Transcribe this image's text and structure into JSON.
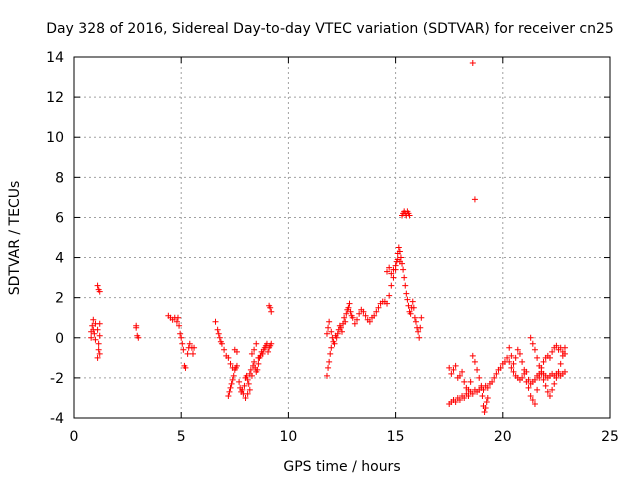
{
  "chart_data": {
    "type": "scatter",
    "title": "Day 328 of 2016, Sidereal Day-to-day VTEC variation (SDTVAR) for receiver cn25",
    "xlabel": "GPS time / hours",
    "ylabel": "SDTVAR / TECUs",
    "xlim": [
      0,
      25
    ],
    "ylim": [
      -4,
      14
    ],
    "xticks": [
      0,
      5,
      10,
      15,
      20,
      25
    ],
    "yticks": [
      -4,
      -2,
      0,
      2,
      4,
      6,
      8,
      10,
      12,
      14
    ],
    "xtick_labels": [
      "0",
      "5",
      "10",
      "15",
      "20",
      "25"
    ],
    "ytick_labels": [
      "-4",
      "-2",
      "0",
      "2",
      "4",
      "6",
      "8",
      "10",
      "12",
      "14"
    ],
    "grid": true,
    "marker": "+",
    "marker_color": "#ff0000",
    "series": [
      {
        "name": "SDTVAR",
        "x": [
          0.8,
          0.85,
          0.9,
          0.95,
          1.0,
          0.8,
          0.9,
          1.0,
          1.1,
          1.15,
          1.2,
          1.1,
          1.15,
          1.2,
          1.1,
          1.15,
          1.2,
          1.2,
          2.9,
          2.95,
          3.0,
          2.9,
          4.4,
          4.5,
          4.6,
          4.7,
          4.8,
          4.85,
          4.9,
          4.95,
          5.0,
          5.05,
          5.1,
          5.15,
          5.2,
          5.3,
          5.35,
          5.4,
          5.5,
          5.55,
          5.6,
          6.6,
          6.7,
          6.75,
          6.8,
          6.85,
          6.9,
          7.0,
          7.1,
          7.2,
          7.3,
          7.4,
          7.5,
          7.6,
          7.2,
          7.25,
          7.3,
          7.35,
          7.4,
          7.45,
          7.5,
          7.55,
          7.6,
          7.7,
          7.75,
          7.8,
          7.85,
          7.9,
          7.95,
          8.0,
          8.05,
          8.1,
          8.15,
          8.2,
          8.25,
          8.3,
          8.35,
          8.4,
          8.45,
          8.5,
          8.55,
          8.6,
          8.65,
          8.7,
          8.75,
          8.8,
          8.85,
          8.9,
          8.95,
          9.0,
          9.05,
          9.1,
          9.15,
          9.2,
          8.0,
          8.1,
          8.2,
          8.3,
          8.4,
          8.5,
          8.6,
          9.1,
          9.15,
          9.2,
          11.8,
          11.85,
          11.9,
          11.95,
          12.0,
          11.8,
          11.85,
          11.9,
          12.0,
          12.05,
          12.1,
          12.15,
          12.2,
          12.25,
          12.3,
          12.35,
          12.4,
          12.45,
          12.5,
          12.55,
          12.6,
          12.65,
          12.7,
          12.75,
          12.8,
          12.85,
          12.9,
          12.95,
          13.0,
          13.1,
          13.2,
          13.3,
          13.4,
          13.5,
          13.6,
          13.7,
          13.8,
          13.9,
          14.0,
          14.1,
          14.2,
          14.3,
          14.4,
          14.5,
          14.6,
          14.7,
          14.8,
          14.9,
          15.0,
          15.05,
          15.1,
          15.15,
          15.2,
          15.25,
          15.3,
          15.35,
          15.4,
          15.45,
          15.5,
          15.55,
          15.6,
          15.65,
          15.7,
          15.75,
          15.8,
          15.85,
          15.9,
          15.95,
          16.0,
          16.05,
          16.1,
          16.15,
          16.2,
          15.3,
          15.35,
          15.4,
          15.45,
          15.5,
          15.55,
          15.6,
          15.65,
          14.6,
          14.7,
          14.8,
          14.9,
          15.0,
          15.1,
          15.2,
          18.6,
          18.7,
          17.5,
          17.6,
          17.7,
          17.8,
          17.9,
          18.0,
          18.1,
          18.2,
          18.3,
          18.4,
          18.5,
          18.6,
          18.7,
          18.8,
          18.9,
          19.0,
          19.1,
          19.2,
          19.3,
          19.4,
          19.5,
          19.6,
          19.7,
          19.8,
          19.9,
          20.0,
          20.1,
          20.2,
          20.3,
          20.4,
          20.5,
          20.6,
          20.7,
          20.8,
          20.9,
          21.0,
          21.1,
          21.2,
          21.3,
          21.4,
          21.5,
          21.6,
          21.7,
          21.8,
          21.9,
          22.0,
          22.1,
          22.2,
          22.3,
          22.4,
          22.5,
          22.6,
          22.7,
          22.8,
          22.9,
          17.5,
          17.6,
          17.7,
          17.8,
          17.9,
          18.0,
          18.1,
          18.2,
          18.3,
          18.4,
          18.5,
          18.6,
          18.7,
          18.8,
          18.9,
          19.0,
          19.05,
          19.1,
          19.15,
          19.2,
          19.25,
          19.3,
          20.3,
          20.4,
          20.5,
          20.6,
          20.7,
          20.8,
          20.9,
          21.0,
          21.1,
          21.2,
          21.3,
          21.4,
          21.5,
          21.6,
          21.7,
          21.8,
          21.9,
          22.0,
          22.1,
          22.2,
          22.3,
          22.4,
          22.5,
          22.6,
          22.7,
          22.8,
          22.9,
          21.3,
          21.4,
          21.5,
          21.6,
          21.7,
          21.8,
          21.9,
          22.0,
          22.1,
          22.2,
          22.3,
          22.4,
          22.5,
          22.6,
          22.7,
          22.8,
          22.9
        ],
        "y": [
          0.3,
          0.6,
          0.9,
          0.2,
          -0.1,
          0.0,
          0.4,
          0.7,
          0.4,
          -0.3,
          -0.8,
          2.6,
          2.4,
          2.3,
          -1.0,
          -0.6,
          0.7,
          0.1,
          0.5,
          0.1,
          0.0,
          0.6,
          1.1,
          1.0,
          0.9,
          1.0,
          0.8,
          1.0,
          0.6,
          0.2,
          0.0,
          -0.3,
          -0.6,
          -1.4,
          -1.5,
          -0.8,
          -0.5,
          -0.3,
          -0.5,
          -0.8,
          -0.5,
          0.8,
          0.4,
          0.2,
          0.0,
          -0.2,
          -0.3,
          -0.6,
          -0.9,
          -1.0,
          -1.3,
          -1.5,
          -0.6,
          -0.7,
          -2.9,
          -2.7,
          -2.5,
          -2.3,
          -2.1,
          -1.9,
          -1.6,
          -1.5,
          -1.4,
          -2.2,
          -2.5,
          -2.7,
          -2.6,
          -2.8,
          -2.4,
          -2.0,
          -1.9,
          -2.1,
          -2.3,
          -1.8,
          -1.6,
          -1.9,
          -1.4,
          -1.2,
          -1.5,
          -1.7,
          -1.6,
          -1.3,
          -1.0,
          -0.9,
          -0.7,
          -0.8,
          -0.6,
          -0.5,
          -0.4,
          -0.3,
          -0.7,
          1.6,
          1.5,
          1.3,
          -3.0,
          -2.8,
          -2.6,
          -0.8,
          -0.6,
          -0.3,
          -1.0,
          -0.5,
          -0.4,
          -0.3,
          -1.9,
          -1.5,
          -1.2,
          -0.8,
          -0.5,
          0.2,
          0.5,
          0.8,
          0.3,
          0.0,
          -0.2,
          -0.3,
          0.1,
          0.0,
          0.2,
          0.4,
          0.6,
          0.5,
          0.3,
          0.7,
          1.0,
          0.8,
          1.2,
          1.4,
          1.5,
          1.7,
          1.3,
          1.1,
          1.0,
          0.7,
          0.9,
          1.2,
          1.4,
          1.3,
          1.1,
          0.9,
          0.8,
          1.0,
          1.1,
          1.3,
          1.5,
          1.7,
          1.8,
          1.8,
          1.7,
          2.1,
          2.6,
          3.0,
          3.4,
          3.8,
          4.2,
          4.5,
          4.3,
          4.0,
          3.7,
          3.4,
          3.0,
          2.6,
          2.2,
          1.9,
          1.6,
          1.3,
          1.2,
          1.5,
          1.8,
          1.5,
          1.0,
          0.8,
          0.5,
          0.3,
          0.0,
          0.5,
          1.0,
          6.1,
          6.2,
          6.3,
          6.2,
          6.1,
          6.3,
          6.2,
          6.1,
          3.3,
          3.5,
          3.2,
          3.4,
          3.6,
          3.9,
          3.8,
          13.7,
          6.9,
          -3.3,
          -3.2,
          -3.1,
          -3.2,
          -3.0,
          -3.1,
          -2.9,
          -3.0,
          -2.8,
          -2.9,
          -2.7,
          -2.8,
          -2.6,
          -2.7,
          -2.6,
          -2.5,
          -2.6,
          -2.4,
          -2.5,
          -2.3,
          -2.2,
          -2.0,
          -1.8,
          -1.6,
          -1.5,
          -1.3,
          -1.2,
          -1.0,
          -1.2,
          -1.5,
          -1.7,
          -1.9,
          -2.0,
          -2.1,
          -2.0,
          -1.8,
          -1.7,
          -2.1,
          -2.3,
          -2.2,
          -2.1,
          -1.9,
          -1.8,
          -1.7,
          -1.8,
          -1.9,
          -2.0,
          -1.9,
          -1.8,
          -1.9,
          -1.8,
          -1.7,
          -1.9,
          -1.8,
          -1.7,
          -1.5,
          -1.8,
          -1.6,
          -1.4,
          -2.0,
          -1.9,
          -1.7,
          -2.2,
          -2.5,
          -2.6,
          -2.2,
          -0.9,
          -1.2,
          -1.6,
          -2.0,
          -2.4,
          -2.9,
          -3.4,
          -3.7,
          -3.5,
          -3.2,
          -3.0,
          -0.5,
          -0.9,
          -1.3,
          -1.0,
          -0.6,
          -0.8,
          -1.2,
          -1.6,
          -2.2,
          -2.5,
          -2.9,
          -3.1,
          -3.3,
          -2.6,
          -2.0,
          -1.5,
          -1.2,
          -1.0,
          -0.9,
          -1.0,
          -0.7,
          -0.5,
          -0.4,
          -0.6,
          -0.5,
          -0.7,
          -0.8,
          0.0,
          -0.3,
          -0.6,
          -1.0,
          -1.4,
          -1.8,
          -2.1,
          -2.4,
          -2.7,
          -2.9,
          -2.6,
          -2.3,
          -2.0,
          -1.8,
          -1.3,
          -0.9,
          -0.5
        ]
      }
    ]
  }
}
